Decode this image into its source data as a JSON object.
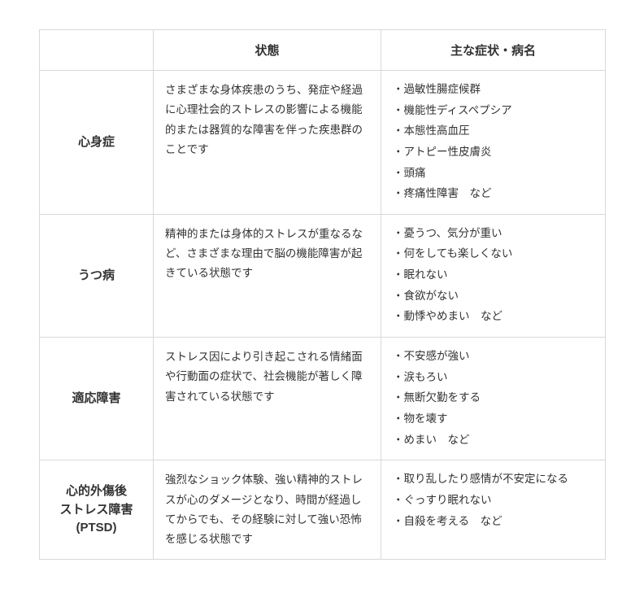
{
  "colors": {
    "border": "#d9d9d9",
    "text": "#333333",
    "background": "#ffffff"
  },
  "typography": {
    "header_fontsize": 15,
    "header_fontweight": 700,
    "name_fontsize": 15,
    "name_fontweight": 700,
    "body_fontsize": 13.5,
    "body_lineheight": 1.8
  },
  "table": {
    "headers": {
      "col1": "",
      "col2": "状態",
      "col3": "主な症状・病名"
    },
    "rows": [
      {
        "name": "心身症",
        "desc": "さまざまな身体疾患のうち、発症や経過に心理社会的ストレスの影響による機能的または器質的な障害を伴った疾患群のことです",
        "symptoms": [
          "過敏性腸症候群",
          "機能性ディスペプシア",
          "本態性高血圧",
          "アトピー性皮膚炎",
          "頭痛",
          "疼痛性障害　など"
        ]
      },
      {
        "name": "うつ病",
        "desc": "精神的または身体的ストレスが重なるなど、さまざまな理由で脳の機能障害が起きている状態です",
        "symptoms": [
          "憂うつ、気分が重い",
          "何をしても楽しくない",
          "眠れない",
          "食欲がない",
          "動悸やめまい　など"
        ]
      },
      {
        "name": "適応障害",
        "desc": "ストレス因により引き起こされる情緒面や行動面の症状で、社会機能が著しく障害されている状態です",
        "symptoms": [
          "不安感が強い",
          "涙もろい",
          "無断欠勤をする",
          "物を壊す",
          "めまい　など"
        ]
      },
      {
        "name": "心的外傷後\nストレス障害\n(PTSD)",
        "desc": "強烈なショック体験、強い精神的ストレスが心のダメージとなり、時間が経過してからでも、その経験に対して強い恐怖を感じる状態です",
        "symptoms": [
          "取り乱したり感情が不安定になる",
          "ぐっすり眠れない",
          "自殺を考える　など"
        ]
      }
    ]
  }
}
